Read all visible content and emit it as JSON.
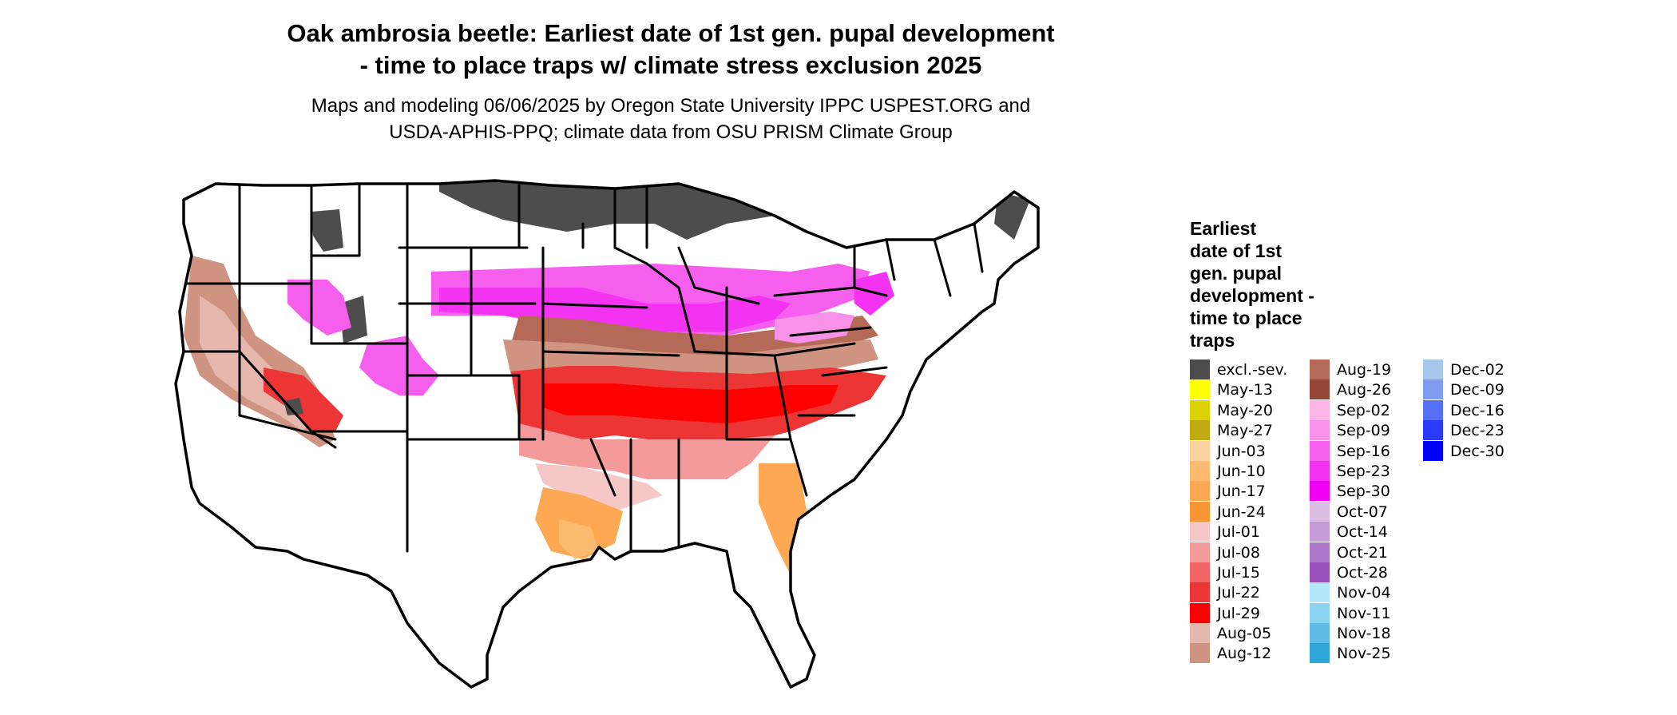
{
  "title_lines": [
    "Oak ambrosia beetle: Earliest date of 1st gen. pupal development",
    "- time to place traps w/ climate stress exclusion 2025"
  ],
  "subtitle_lines": [
    "Maps and modeling 06/06/2025 by Oregon State University IPPC USPEST.ORG and",
    "USDA-APHIS-PPQ; climate data from OSU PRISM Climate Group"
  ],
  "map": {
    "region": "Contiguous United States",
    "icon": "us-states-map",
    "base_color": "#ffffff",
    "outline_color": "#000000",
    "excluded_color": "#4d4d4d"
  },
  "legend": {
    "title_lines": [
      "Earliest",
      "date of 1st",
      "gen. pupal",
      "development -",
      "time to place",
      "traps"
    ],
    "columns": [
      [
        {
          "label": "excl.-sev.",
          "color": "#4d4d4d"
        },
        {
          "label": "May-13",
          "color": "#ffff00"
        },
        {
          "label": "May-20",
          "color": "#dcd200"
        },
        {
          "label": "May-27",
          "color": "#bfaa10"
        },
        {
          "label": "Jun-03",
          "color": "#fdd49e"
        },
        {
          "label": "Jun-10",
          "color": "#fdbb6f"
        },
        {
          "label": "Jun-17",
          "color": "#fda852"
        },
        {
          "label": "Jun-24",
          "color": "#f89535"
        },
        {
          "label": "Jul-01",
          "color": "#f6c7c7"
        },
        {
          "label": "Jul-08",
          "color": "#f49a9a"
        },
        {
          "label": "Jul-15",
          "color": "#f16565"
        },
        {
          "label": "Jul-22",
          "color": "#ee3535"
        },
        {
          "label": "Jul-29",
          "color": "#ff0000"
        },
        {
          "label": "Aug-05",
          "color": "#e6b8ad"
        },
        {
          "label": "Aug-12",
          "color": "#cf9382"
        }
      ],
      [
        {
          "label": "Aug-19",
          "color": "#b56a57"
        },
        {
          "label": "Aug-26",
          "color": "#944536"
        },
        {
          "label": "Sep-02",
          "color": "#fbb4e5"
        },
        {
          "label": "Sep-09",
          "color": "#f891e8"
        },
        {
          "label": "Sep-16",
          "color": "#f65fee"
        },
        {
          "label": "Sep-23",
          "color": "#f432f2"
        },
        {
          "label": "Sep-30",
          "color": "#f000f5"
        },
        {
          "label": "Oct-07",
          "color": "#dcbde4"
        },
        {
          "label": "Oct-14",
          "color": "#c49ad7"
        },
        {
          "label": "Oct-21",
          "color": "#ae78cb"
        },
        {
          "label": "Oct-28",
          "color": "#9a52bd"
        },
        {
          "label": "Nov-04",
          "color": "#b3e8fb"
        },
        {
          "label": "Nov-11",
          "color": "#8bd3f0"
        },
        {
          "label": "Nov-18",
          "color": "#5dbbe6"
        },
        {
          "label": "Nov-25",
          "color": "#2ea6da"
        }
      ],
      [
        {
          "label": "Dec-02",
          "color": "#a6c8ec"
        },
        {
          "label": "Dec-09",
          "color": "#7f9cf0"
        },
        {
          "label": "Dec-16",
          "color": "#5470f4"
        },
        {
          "label": "Dec-23",
          "color": "#2a3cf9"
        },
        {
          "label": "Dec-30",
          "color": "#0000ff"
        }
      ]
    ]
  }
}
